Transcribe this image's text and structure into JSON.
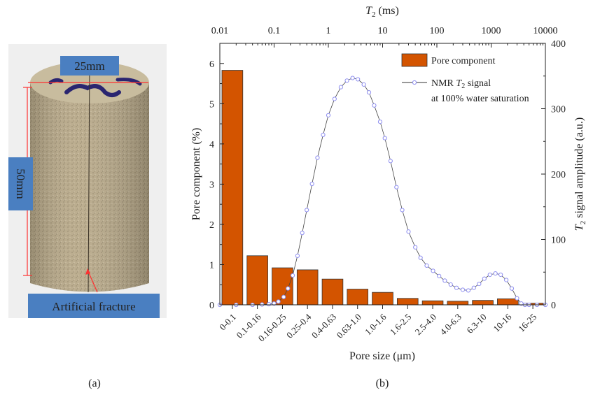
{
  "panel_a": {
    "label": "(a)",
    "width_label": "25mm",
    "height_label": "50mm",
    "fracture_label": "Artificial fracture",
    "colors": {
      "label_box": "#4a7fc1",
      "dimension_line": "#ff3030",
      "rock": "#b8a98a",
      "marker": "#2a2570"
    }
  },
  "panel_b": {
    "label": "(b)"
  },
  "chart_data": {
    "type": "bar+line",
    "top_axis": {
      "title_italic": "T",
      "title_sub": "2",
      "title_rest": " (ms)",
      "scale": "log",
      "range": [
        0.01,
        10000
      ],
      "ticks": [
        "0.01",
        "0.1",
        "1",
        "10",
        "100",
        "1000",
        "10000"
      ]
    },
    "xlabel": "Pore size (μm)",
    "ylabel_left": "Pore component (%)",
    "ylabel_right": {
      "italic": "T",
      "sub": "2",
      "rest": " signal amplitude (a.u.)"
    },
    "ylim_left": [
      0,
      6.5
    ],
    "yticks_left": [
      0,
      1,
      2,
      3,
      4,
      5,
      6
    ],
    "ylim_right": [
      0,
      400
    ],
    "yticks_right": [
      0,
      100,
      200,
      300,
      400
    ],
    "categories": [
      "0-0.1",
      "0.1-0.16",
      "0.16-0.25",
      "0.25-0.4",
      "0.4-0.63",
      "0.63-1.0",
      "1.0-1.6",
      "1.6-2.5",
      "2.5-4.0",
      "4.0-6.3",
      "6.3-10",
      "10-16",
      "16-25"
    ],
    "legend_position": "top-right",
    "series": [
      {
        "name": "Pore component",
        "type": "bar",
        "axis": "left",
        "color": "#d35400",
        "values": [
          5.83,
          1.22,
          0.92,
          0.87,
          0.64,
          0.39,
          0.31,
          0.16,
          0.1,
          0.09,
          0.11,
          0.15,
          0.04
        ]
      },
      {
        "name": "NMR T2 signal",
        "name_line2": "at 100% water saturation",
        "type": "line",
        "axis": "right",
        "color": "#8f8ff0",
        "t2_ms": [
          0.01,
          0.02,
          0.04,
          0.06,
          0.08,
          0.1,
          0.12,
          0.15,
          0.18,
          0.22,
          0.27,
          0.33,
          0.4,
          0.5,
          0.63,
          0.8,
          1.0,
          1.3,
          1.7,
          2.2,
          2.8,
          3.5,
          4.5,
          5.6,
          7,
          9,
          11,
          14,
          18,
          23,
          30,
          40,
          50,
          65,
          85,
          110,
          140,
          180,
          230,
          300,
          380,
          480,
          600,
          750,
          950,
          1200,
          1500,
          1900,
          2400,
          3000,
          3600,
          4200,
          5000,
          7000,
          10000
        ],
        "amplitude": [
          0,
          0,
          0,
          0.5,
          1,
          2,
          5,
          12,
          25,
          45,
          75,
          110,
          145,
          185,
          225,
          260,
          290,
          315,
          333,
          343,
          347,
          345,
          337,
          325,
          305,
          280,
          255,
          220,
          180,
          145,
          112,
          88,
          72,
          60,
          52,
          44,
          37,
          31,
          26,
          23,
          22,
          26,
          32,
          40,
          46,
          48,
          46,
          38,
          25,
          10,
          2,
          0,
          0,
          0,
          0
        ]
      }
    ]
  }
}
